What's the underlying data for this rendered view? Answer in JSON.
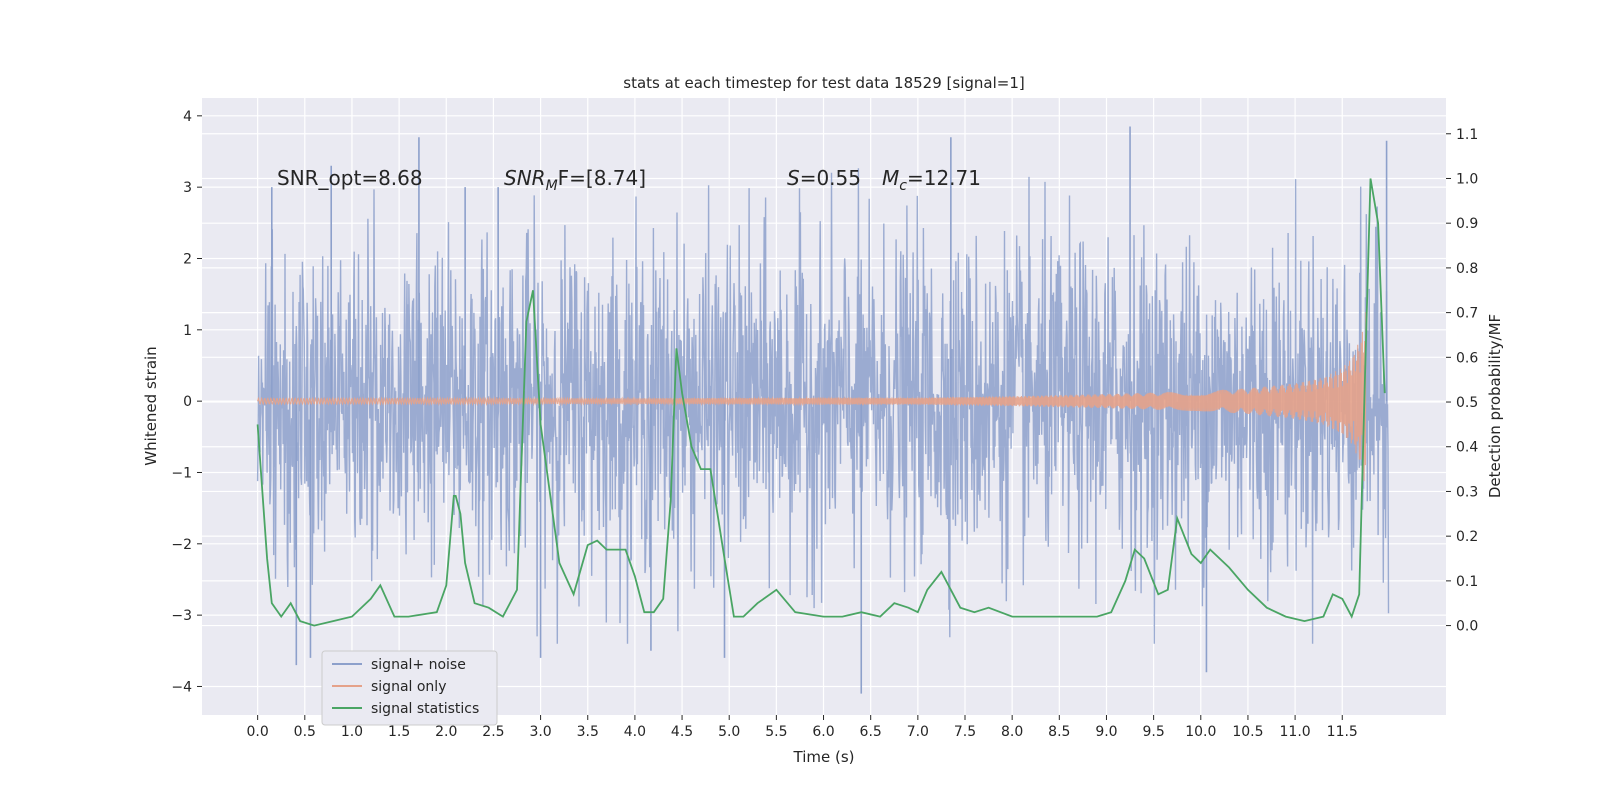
{
  "chart_data": {
    "type": "line",
    "title": "stats at each timestep for test data 18529 [signal=1]",
    "xlabel": "Time (s)",
    "ylabel_left": "Whitened strain",
    "ylabel_right": "Detection probability/MF",
    "xlim": [
      -0.59,
      12.6
    ],
    "ylim_left": [
      -4.4,
      4.25
    ],
    "ylim_right": [
      -0.2,
      1.18
    ],
    "grid": true,
    "legend_position": "lower-left",
    "x_ticks": [
      "0.0",
      "0.5",
      "1.0",
      "1.5",
      "2.0",
      "2.5",
      "3.0",
      "3.5",
      "4.0",
      "4.5",
      "5.0",
      "5.5",
      "6.0",
      "6.5",
      "7.0",
      "7.5",
      "8.0",
      "8.5",
      "9.0",
      "9.5",
      "10.0",
      "10.5",
      "11.0",
      "11.5"
    ],
    "y_ticks_left": [
      "4",
      "3",
      "2",
      "1",
      "0",
      "−1",
      "−2",
      "−3",
      "−4"
    ],
    "y_ticks_right": [
      "1.1",
      "1.0",
      "0.9",
      "0.8",
      "0.7",
      "0.6",
      "0.5",
      "0.4",
      "0.3",
      "0.2",
      "0.1",
      "0.0"
    ],
    "annotations": {
      "snr_opt": "SNR_opt=8.68",
      "snr_mf_main": "SNR",
      "snr_mf_sub": "M",
      "snr_mf_rest": "F=[8.74]",
      "s_sym": "S",
      "s_val": "=0.55",
      "mc_main": "M",
      "mc_sub": "c",
      "mc_val": "=12.71"
    },
    "series": [
      {
        "name": "signal+ noise",
        "color": "#8da0cb",
        "description_axis": "left",
        "x_range": [
          0.0,
          11.99
        ],
        "typical_amplitude": 1.1,
        "peak_values": [
          {
            "x": 0.15,
            "y": 3.0
          },
          {
            "x": 0.78,
            "y": 3.3
          },
          {
            "x": 1.71,
            "y": 3.7
          },
          {
            "x": 0.41,
            "y": -3.7
          },
          {
            "x": 0.56,
            "y": -3.6
          },
          {
            "x": 2.2,
            "y": 3.0
          },
          {
            "x": 2.55,
            "y": 3.0
          },
          {
            "x": 3.0,
            "y": -3.6
          },
          {
            "x": 4.17,
            "y": -3.5
          },
          {
            "x": 4.95,
            "y": -3.6
          },
          {
            "x": 6.4,
            "y": -4.1
          },
          {
            "x": 7.35,
            "y": 3.7
          },
          {
            "x": 9.25,
            "y": 3.85
          },
          {
            "x": 10.06,
            "y": -3.8
          },
          {
            "x": 11.97,
            "y": 3.65
          }
        ]
      },
      {
        "name": "signal only",
        "color": "#e5a28a",
        "description_axis": "left",
        "x": [
          0.0,
          2.0,
          4.0,
          6.0,
          7.0,
          8.0,
          9.0,
          10.0,
          10.5,
          11.0,
          11.3,
          11.5,
          11.6,
          11.7,
          11.75
        ],
        "envelope": [
          0.04,
          0.04,
          0.04,
          0.05,
          0.05,
          0.07,
          0.1,
          0.14,
          0.18,
          0.25,
          0.33,
          0.47,
          0.6,
          0.9,
          1.25
        ]
      },
      {
        "name": "signal statistics",
        "color": "#4aa564",
        "description_axis": "right",
        "x": [
          0.0,
          0.1,
          0.15,
          0.25,
          0.35,
          0.45,
          0.6,
          0.8,
          1.0,
          1.2,
          1.3,
          1.45,
          1.6,
          1.9,
          2.0,
          2.08,
          2.1,
          2.15,
          2.2,
          2.3,
          2.45,
          2.6,
          2.75,
          2.85,
          2.92,
          3.0,
          3.2,
          3.35,
          3.5,
          3.6,
          3.7,
          3.9,
          4.0,
          4.1,
          4.2,
          4.3,
          4.38,
          4.44,
          4.5,
          4.6,
          4.7,
          4.8,
          4.95,
          5.05,
          5.15,
          5.3,
          5.5,
          5.7,
          6.0,
          6.2,
          6.4,
          6.6,
          6.75,
          6.9,
          7.0,
          7.1,
          7.25,
          7.45,
          7.6,
          7.75,
          8.0,
          8.3,
          8.6,
          8.9,
          9.05,
          9.2,
          9.3,
          9.4,
          9.55,
          9.65,
          9.75,
          9.9,
          10.0,
          10.1,
          10.3,
          10.5,
          10.7,
          10.9,
          11.1,
          11.3,
          11.4,
          11.5,
          11.6,
          11.68,
          11.74,
          11.8,
          11.88,
          11.95
        ],
        "values": [
          0.45,
          0.15,
          0.05,
          0.02,
          0.05,
          0.01,
          0.0,
          0.01,
          0.02,
          0.06,
          0.09,
          0.02,
          0.02,
          0.03,
          0.09,
          0.29,
          0.29,
          0.25,
          0.14,
          0.05,
          0.04,
          0.02,
          0.08,
          0.68,
          0.75,
          0.45,
          0.14,
          0.07,
          0.18,
          0.19,
          0.17,
          0.17,
          0.11,
          0.03,
          0.03,
          0.06,
          0.28,
          0.62,
          0.52,
          0.4,
          0.35,
          0.35,
          0.15,
          0.02,
          0.02,
          0.05,
          0.08,
          0.03,
          0.02,
          0.02,
          0.03,
          0.02,
          0.05,
          0.04,
          0.03,
          0.08,
          0.12,
          0.04,
          0.03,
          0.04,
          0.02,
          0.02,
          0.02,
          0.02,
          0.03,
          0.1,
          0.17,
          0.15,
          0.07,
          0.08,
          0.24,
          0.16,
          0.14,
          0.17,
          0.13,
          0.08,
          0.04,
          0.02,
          0.01,
          0.02,
          0.07,
          0.06,
          0.02,
          0.07,
          0.55,
          1.0,
          0.9,
          0.52
        ]
      }
    ]
  },
  "legend": {
    "entries": [
      "signal+ noise",
      "signal only",
      "signal statistics"
    ]
  }
}
